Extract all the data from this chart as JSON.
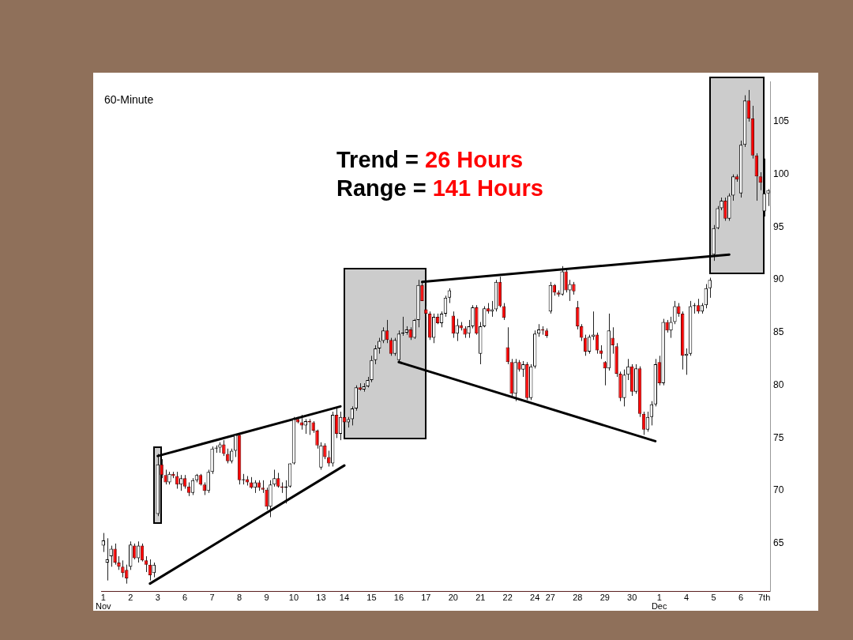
{
  "chart_data": {
    "type": "candlestick",
    "title": "60-Minute",
    "annotations": [
      "Trend = 26 Hours",
      "Range = 141 Hours"
    ],
    "categories": [
      "1\nNov",
      null,
      null,
      null,
      null,
      null,
      null,
      "2",
      null,
      null,
      null,
      null,
      null,
      null,
      "3",
      null,
      null,
      null,
      null,
      null,
      null,
      "6",
      null,
      null,
      null,
      null,
      null,
      null,
      "7",
      null,
      null,
      null,
      null,
      null,
      null,
      "8",
      null,
      null,
      null,
      null,
      null,
      null,
      "9",
      null,
      null,
      null,
      null,
      null,
      null,
      "10",
      null,
      null,
      null,
      null,
      null,
      null,
      "13",
      null,
      null,
      null,
      null,
      null,
      "14",
      null,
      null,
      null,
      null,
      null,
      null,
      "15",
      null,
      null,
      null,
      null,
      null,
      null,
      "16",
      null,
      null,
      null,
      null,
      null,
      null,
      "17",
      null,
      null,
      null,
      null,
      null,
      null,
      "20",
      null,
      null,
      null,
      null,
      null,
      null,
      "21",
      null,
      null,
      null,
      null,
      null,
      null,
      "22",
      null,
      null,
      null,
      null,
      null,
      null,
      "24",
      null,
      null,
      null,
      "27",
      null,
      null,
      null,
      null,
      null,
      null,
      "28",
      null,
      null,
      null,
      null,
      null,
      null,
      "29",
      null,
      null,
      null,
      null,
      null,
      null,
      "30",
      null,
      null,
      null,
      null,
      null,
      null,
      "1\nDec",
      null,
      null,
      null,
      null,
      null,
      null,
      "4",
      null,
      null,
      null,
      null,
      null,
      null,
      "5",
      null,
      null,
      null,
      null,
      null,
      null,
      "6",
      null,
      null,
      null,
      null,
      null,
      "7th",
      null
    ],
    "ohlc": [
      [
        64.8,
        66,
        64.2,
        65.3
      ],
      [
        63.2,
        65.5,
        61.5,
        63.5
      ],
      [
        63.8,
        64.8,
        62.8,
        64.5
      ],
      [
        64.5,
        65,
        63,
        63.2
      ],
      [
        63.2,
        63.8,
        62.5,
        62.8
      ],
      [
        62.8,
        63.4,
        61.8,
        62.2
      ],
      [
        62.5,
        63,
        61.2,
        61.7
      ],
      [
        62.8,
        65.2,
        62.5,
        64.9
      ],
      [
        64.8,
        65,
        63.5,
        63.6
      ],
      [
        63.6,
        65.2,
        63.2,
        64.8
      ],
      [
        64.8,
        65,
        63.3,
        63.4
      ],
      [
        63.4,
        63.8,
        62.3,
        63.0
      ],
      [
        63,
        63.5,
        61.5,
        62
      ],
      [
        62.2,
        63.2,
        61.8,
        63
      ],
      [
        67.8,
        73.5,
        67.6,
        72.5
      ],
      [
        72.5,
        73,
        71.2,
        71.5
      ],
      [
        71.5,
        72,
        70.6,
        70.8
      ],
      [
        70.8,
        71.8,
        70.6,
        71.6
      ],
      [
        71.6,
        71.8,
        71.2,
        71.4
      ],
      [
        71.4,
        71.8,
        70.2,
        70.6
      ],
      [
        70.6,
        71.5,
        70.0,
        71.2
      ],
      [
        71.2,
        71.5,
        70.2,
        70.4
      ],
      [
        70.4,
        70.8,
        69.5,
        69.8
      ],
      [
        69.8,
        71.2,
        69.6,
        71.0
      ],
      [
        71.0,
        71.6,
        70.8,
        71.5
      ],
      [
        71.5,
        71.6,
        70.5,
        70.6
      ],
      [
        70.6,
        70.8,
        69.6,
        70.0
      ],
      [
        70.0,
        72.0,
        69.8,
        71.8
      ],
      [
        71.8,
        74.2,
        71.6,
        74.0
      ],
      [
        74.0,
        74.3,
        73.6,
        74.1
      ],
      [
        74.1,
        74.6,
        73.6,
        74.4
      ],
      [
        74.4,
        74.8,
        73.3,
        73.5
      ],
      [
        73.5,
        74.0,
        72.6,
        72.8
      ],
      [
        72.8,
        74.0,
        72.6,
        73.8
      ],
      [
        73.8,
        75.3,
        73.2,
        75.3
      ],
      [
        75.3,
        75.4,
        70.6,
        71.0
      ],
      [
        71.0,
        71.6,
        70.6,
        71.1
      ],
      [
        71.1,
        71.4,
        70.5,
        70.8
      ],
      [
        70.8,
        71.3,
        70.2,
        70.3
      ],
      [
        70.3,
        71.0,
        69.8,
        70.8
      ],
      [
        70.8,
        71.0,
        70.0,
        70.3
      ],
      [
        70.3,
        71.0,
        69.8,
        70.1
      ],
      [
        70.1,
        70.3,
        68.2,
        68.5
      ],
      [
        68.5,
        71.0,
        67.5,
        70.6
      ],
      [
        70.6,
        72.0,
        70.4,
        71.2
      ],
      [
        71.2,
        71.7,
        70.3,
        70.4
      ],
      [
        70.4,
        70.8,
        69.8,
        70.3
      ],
      [
        70.3,
        71.0,
        68.8,
        70.4
      ],
      [
        70.4,
        72.6,
        70.3,
        72.6
      ],
      [
        72.6,
        77.0,
        72.5,
        76.8
      ],
      [
        76.8,
        76.9,
        76.4,
        76.5
      ],
      [
        76.5,
        77.2,
        75.8,
        76.2
      ],
      [
        76.2,
        76.8,
        75.4,
        76.6
      ],
      [
        76.6,
        76.8,
        75.3,
        76.5
      ],
      [
        76.5,
        76.6,
        75.5,
        75.7
      ],
      [
        75.7,
        75.8,
        74.0,
        74.3
      ],
      [
        72.2,
        74.6,
        72.0,
        74.3
      ],
      [
        74.3,
        74.5,
        73.0,
        73.2
      ],
      [
        73.2,
        73.8,
        72.3,
        72.6
      ],
      [
        72.6,
        77.5,
        72.3,
        77.2
      ],
      [
        77.2,
        77.8,
        75.0,
        75.4
      ],
      [
        75.4,
        77.5,
        74.8,
        77.0
      ],
      [
        77.0,
        77.3,
        76.2,
        76.5
      ],
      [
        76.5,
        77.0,
        76.0,
        76.8
      ],
      [
        76.8,
        78.0,
        76.2,
        77.8
      ],
      [
        77.8,
        80.0,
        77.6,
        79.8
      ],
      [
        79.8,
        80.2,
        79.5,
        79.6
      ],
      [
        79.6,
        80.2,
        79.4,
        79.9
      ],
      [
        79.9,
        80.8,
        79.8,
        80.5
      ],
      [
        80.5,
        82.8,
        80.3,
        82.4
      ],
      [
        82.4,
        83.8,
        82.0,
        83.5
      ],
      [
        83.5,
        84.5,
        83.0,
        84.2
      ],
      [
        84.2,
        85.5,
        84.0,
        85.2
      ],
      [
        85.2,
        86.2,
        84.0,
        84.3
      ],
      [
        84.3,
        84.5,
        82.8,
        83.0
      ],
      [
        83.0,
        84.5,
        82.8,
        84.3
      ],
      [
        82.4,
        85.2,
        82.2,
        84.9
      ],
      [
        84.9,
        86.5,
        84.7,
        85.0
      ],
      [
        85.0,
        85.6,
        84.8,
        85.3
      ],
      [
        85.3,
        85.5,
        84.3,
        84.5
      ],
      [
        84.5,
        86.3,
        84.4,
        86.2
      ],
      [
        86.2,
        90.0,
        85.5,
        89.5
      ],
      [
        89.5,
        89.8,
        88.0,
        88.0
      ],
      [
        87.2,
        87.5,
        86.5,
        86.8
      ],
      [
        86.8,
        87.0,
        84.3,
        84.5
      ],
      [
        84.5,
        86.8,
        84.0,
        86.5
      ],
      [
        86.5,
        86.8,
        85.8,
        85.9
      ],
      [
        85.9,
        87.0,
        85.5,
        86.8
      ],
      [
        86.8,
        88.5,
        86.5,
        88.3
      ],
      [
        88.3,
        89.2,
        87.8,
        89.0
      ],
      [
        86.6,
        87.0,
        84.5,
        84.9
      ],
      [
        84.9,
        86.3,
        84.2,
        85.7
      ],
      [
        85.7,
        86.0,
        85.2,
        85.4
      ],
      [
        85.4,
        85.6,
        84.5,
        84.8
      ],
      [
        84.9,
        86.2,
        84.5,
        85.6
      ],
      [
        85.6,
        87.6,
        85.4,
        87.4
      ],
      [
        87.4,
        87.6,
        84.8,
        84.9
      ],
      [
        83.0,
        86.0,
        82.0,
        85.6
      ],
      [
        85.6,
        87.5,
        85.5,
        87.3
      ],
      [
        87.3,
        87.8,
        86.8,
        87.0
      ],
      [
        87.0,
        88.0,
        86.5,
        87.2
      ],
      [
        87.2,
        90.0,
        87.0,
        89.8
      ],
      [
        89.8,
        90.3,
        87.4,
        87.5
      ],
      [
        87.5,
        87.8,
        86.2,
        86.4
      ],
      [
        83.6,
        85.5,
        82.0,
        82.2
      ],
      [
        82.2,
        82.5,
        79.0,
        79.2
      ],
      [
        79.2,
        82.5,
        78.5,
        82.2
      ],
      [
        82.2,
        82.4,
        81.3,
        81.5
      ],
      [
        81.5,
        82.3,
        80.8,
        82.0
      ],
      [
        82.0,
        82.2,
        78.6,
        78.8
      ],
      [
        78.8,
        82.0,
        78.6,
        81.8
      ],
      [
        81.8,
        85.2,
        81.6,
        84.9
      ],
      [
        84.9,
        85.8,
        84.6,
        85.3
      ],
      [
        85.3,
        85.6,
        84.8,
        85.2
      ],
      [
        85.2,
        85.4,
        84.5,
        84.7
      ],
      [
        87.0,
        89.8,
        86.8,
        89.5
      ],
      [
        89.5,
        89.6,
        88.5,
        88.8
      ],
      [
        88.8,
        89.0,
        88.4,
        88.6
      ],
      [
        88.6,
        91.3,
        88.5,
        90.8
      ],
      [
        90.8,
        91.0,
        88.8,
        89.0
      ],
      [
        89.0,
        90.0,
        88.0,
        89.6
      ],
      [
        89.6,
        89.8,
        88.6,
        88.9
      ],
      [
        87.4,
        88.0,
        85.3,
        85.6
      ],
      [
        85.6,
        85.8,
        84.2,
        84.5
      ],
      [
        84.5,
        84.8,
        82.8,
        83.2
      ],
      [
        83.2,
        84.8,
        83.0,
        84.6
      ],
      [
        84.6,
        87.0,
        84.3,
        84.8
      ],
      [
        84.8,
        85.0,
        83.0,
        83.3
      ],
      [
        83.3,
        83.8,
        82.5,
        83.0
      ],
      [
        82.2,
        82.3,
        80.0,
        81.6
      ],
      [
        81.6,
        86.8,
        81.4,
        85.2
      ],
      [
        84.5,
        85.5,
        83.0,
        83.8
      ],
      [
        83.7,
        84.0,
        80.8,
        81.1
      ],
      [
        81.1,
        81.3,
        78.5,
        78.8
      ],
      [
        78.8,
        81.5,
        78.0,
        81.0
      ],
      [
        81.0,
        82.5,
        80.5,
        81.8
      ],
      [
        81.8,
        82.0,
        79.0,
        79.4
      ],
      [
        79.4,
        82.0,
        79.2,
        81.6
      ],
      [
        81.6,
        81.8,
        77.0,
        77.3
      ],
      [
        77.3,
        77.5,
        75.3,
        75.8
      ],
      [
        75.8,
        77.5,
        75.6,
        77.0
      ],
      [
        77.0,
        78.5,
        76.2,
        78.2
      ],
      [
        78.2,
        82.5,
        78.0,
        82.0
      ],
      [
        82.2,
        82.8,
        80.0,
        80.2
      ],
      [
        80.2,
        86.3,
        80.0,
        86.0
      ],
      [
        86.0,
        86.2,
        85.0,
        85.2
      ],
      [
        85.2,
        86.5,
        84.5,
        86.0
      ],
      [
        86.0,
        88.0,
        85.8,
        87.5
      ],
      [
        87.5,
        87.8,
        86.5,
        86.8
      ],
      [
        86.8,
        87.0,
        81.5,
        82.8
      ],
      [
        82.8,
        83.5,
        81.0,
        83.0
      ],
      [
        83.0,
        88.0,
        82.8,
        87.5
      ],
      [
        87.5,
        87.8,
        86.8,
        87.6
      ],
      [
        87.6,
        88.2,
        86.8,
        87.0
      ],
      [
        87.0,
        87.8,
        86.8,
        87.6
      ],
      [
        87.6,
        89.6,
        87.3,
        89.2
      ],
      [
        89.2,
        90.2,
        88.3,
        90.0
      ],
      [
        92.4,
        95.2,
        91.8,
        94.9
      ],
      [
        94.9,
        97.0,
        94.8,
        96.8
      ],
      [
        96.8,
        97.8,
        96.6,
        97.5
      ],
      [
        97.5,
        97.8,
        95.6,
        95.8
      ],
      [
        95.8,
        98.2,
        95.6,
        98.0
      ],
      [
        98.0,
        100.0,
        97.5,
        99.8
      ],
      [
        99.8,
        100.0,
        99.3,
        99.5
      ],
      [
        98.2,
        103.2,
        97.8,
        102.8
      ],
      [
        102.8,
        107.5,
        102.6,
        107.0
      ],
      [
        107.0,
        108.0,
        105.0,
        105.3
      ],
      [
        105.3,
        106.5,
        101.5,
        101.8
      ],
      [
        101.8,
        102.0,
        97.5,
        99.8
      ],
      [
        99.8,
        100.2,
        98.5,
        99.2
      ],
      [
        96.5,
        101.5,
        96.0,
        98.2
      ],
      [
        98.2,
        98.6,
        97.0,
        98.5
      ]
    ],
    "series": [
      {
        "type": "line",
        "color": "#000000",
        "values": [
          null,
          null,
          null,
          null,
          null,
          null,
          null,
          null,
          null,
          null,
          null,
          null,
          null,
          null,
          73.3,
          null,
          null,
          null,
          null,
          null,
          null,
          null,
          null,
          null,
          null,
          null,
          null,
          null,
          null,
          null,
          null,
          null,
          null,
          null,
          null,
          null,
          null,
          null,
          null,
          null,
          null,
          null,
          null,
          null,
          null,
          null,
          null,
          null,
          null,
          null,
          null,
          null,
          null,
          null,
          null,
          null,
          null,
          null,
          null,
          null,
          null,
          78.0,
          null,
          null,
          null,
          null,
          null,
          null,
          null,
          null,
          null,
          null,
          null,
          null,
          null,
          null,
          null,
          null,
          null,
          null,
          null,
          null,
          null,
          null,
          null,
          null,
          null,
          null,
          null,
          null,
          null,
          null,
          null,
          null,
          null,
          null,
          null,
          null,
          null,
          null,
          null,
          null,
          null,
          null,
          null,
          null,
          null,
          null,
          null,
          null,
          null,
          null,
          null,
          null,
          null,
          null,
          null,
          null,
          null,
          null,
          null,
          null,
          null,
          null,
          null,
          null,
          null,
          null,
          null,
          null,
          null,
          null,
          null,
          null,
          null,
          null,
          null,
          null,
          null,
          null,
          null,
          null,
          null,
          null,
          null,
          null,
          null,
          null,
          null,
          null,
          null,
          null,
          null,
          null,
          null,
          null,
          null,
          null,
          null,
          null,
          null,
          null,
          null,
          null,
          null,
          null,
          null,
          null,
          null,
          null,
          null,
          null
        ]
      },
      {
        "type": "line",
        "color": "#000000",
        "values": [
          null,
          null,
          null,
          null,
          null,
          null,
          null,
          null,
          null,
          null,
          null,
          null,
          61.2,
          null,
          null,
          null,
          null,
          null,
          null,
          null,
          null,
          null,
          null,
          null,
          null,
          null,
          null,
          null,
          null,
          null,
          null,
          null,
          null,
          null,
          null,
          null,
          null,
          null,
          null,
          null,
          null,
          null,
          null,
          null,
          null,
          null,
          null,
          null,
          null,
          null,
          null,
          null,
          null,
          null,
          null,
          null,
          null,
          null,
          null,
          null,
          null,
          null,
          72.4,
          null,
          null,
          null,
          null,
          null,
          null,
          null,
          null,
          null,
          null,
          null,
          null,
          null,
          null,
          null,
          null,
          null,
          null,
          null,
          null,
          null,
          null,
          null,
          null,
          null,
          null,
          null,
          null,
          null,
          null,
          null,
          null,
          null,
          null,
          null,
          null,
          null,
          null,
          null,
          null,
          null,
          null,
          null,
          null,
          null,
          null,
          null,
          null,
          null,
          null,
          null,
          null,
          null,
          null,
          null,
          null,
          null,
          null,
          null,
          null,
          null,
          null,
          null,
          null,
          null,
          null,
          null,
          null,
          null,
          null,
          null,
          null,
          null,
          null,
          null,
          null,
          null,
          null,
          null,
          null,
          null,
          null,
          null,
          null,
          null,
          null,
          null,
          null,
          null,
          null,
          null,
          null,
          null,
          null,
          null,
          null,
          null,
          null,
          null,
          null,
          null,
          null,
          null,
          null,
          null,
          null,
          null,
          null,
          null
        ]
      },
      {
        "type": "line",
        "color": "#000000",
        "values": [
          null,
          null,
          null,
          null,
          null,
          null,
          null,
          null,
          null,
          null,
          null,
          null,
          null,
          null,
          null,
          null,
          null,
          null,
          null,
          null,
          null,
          null,
          null,
          null,
          null,
          null,
          null,
          null,
          null,
          null,
          null,
          null,
          null,
          null,
          null,
          null,
          null,
          null,
          null,
          null,
          null,
          null,
          null,
          null,
          null,
          null,
          null,
          null,
          null,
          null,
          null,
          null,
          null,
          null,
          null,
          null,
          null,
          null,
          null,
          null,
          null,
          null,
          null,
          null,
          null,
          null,
          null,
          null,
          null,
          null,
          null,
          null,
          null,
          null,
          null,
          null,
          82.2,
          null,
          null,
          null,
          null,
          null,
          null,
          null,
          null,
          null,
          null,
          null,
          null,
          null,
          null,
          null,
          null,
          null,
          null,
          null,
          null,
          null,
          null,
          null,
          null,
          null,
          null,
          null,
          null,
          null,
          null,
          null,
          null,
          null,
          null,
          null,
          null,
          null,
          null,
          null,
          null,
          null,
          null,
          null,
          null,
          null,
          null,
          null,
          null,
          null,
          null,
          null,
          null,
          null,
          null,
          null,
          null,
          null,
          null,
          null,
          null,
          null,
          null,
          null,
          null,
          null,
          74.7,
          null,
          null,
          null,
          null,
          null,
          null,
          null,
          null,
          null,
          null,
          null,
          null,
          null,
          null,
          null,
          null,
          null,
          null,
          null,
          null,
          null,
          null,
          null,
          null,
          null,
          null,
          null,
          null,
          null
        ]
      },
      {
        "type": "line",
        "color": "#000000",
        "values": [
          null,
          null,
          null,
          null,
          null,
          null,
          null,
          null,
          null,
          null,
          null,
          null,
          null,
          null,
          null,
          null,
          null,
          null,
          null,
          null,
          null,
          null,
          null,
          null,
          null,
          null,
          null,
          null,
          null,
          null,
          null,
          null,
          null,
          null,
          null,
          null,
          null,
          null,
          null,
          null,
          null,
          null,
          null,
          null,
          null,
          null,
          null,
          null,
          null,
          null,
          null,
          null,
          null,
          null,
          null,
          null,
          null,
          null,
          null,
          null,
          null,
          null,
          null,
          null,
          null,
          null,
          null,
          null,
          null,
          null,
          null,
          null,
          null,
          null,
          null,
          null,
          null,
          null,
          null,
          null,
          null,
          null,
          89.8,
          null,
          null,
          null,
          null,
          null,
          null,
          null,
          null,
          null,
          null,
          null,
          null,
          null,
          null,
          null,
          null,
          null,
          null,
          null,
          null,
          null,
          null,
          null,
          null,
          null,
          null,
          null,
          null,
          null,
          null,
          null,
          null,
          null,
          null,
          null,
          null,
          null,
          null,
          null,
          null,
          null,
          null,
          null,
          null,
          null,
          null,
          null,
          null,
          null,
          null,
          null,
          null,
          null,
          null,
          null,
          null,
          null,
          null,
          null,
          null,
          null,
          null,
          null,
          null,
          null,
          null,
          null,
          null,
          null,
          null,
          null,
          null,
          null,
          null,
          null,
          null,
          null,
          null,
          92.4,
          null,
          null,
          null,
          null,
          null,
          null,
          null,
          null,
          null,
          null
        ]
      }
    ],
    "ylim": [
      60.5,
      108.8
    ],
    "yticks": [
      65,
      70,
      75,
      80,
      85,
      90,
      95,
      100,
      105
    ]
  }
}
